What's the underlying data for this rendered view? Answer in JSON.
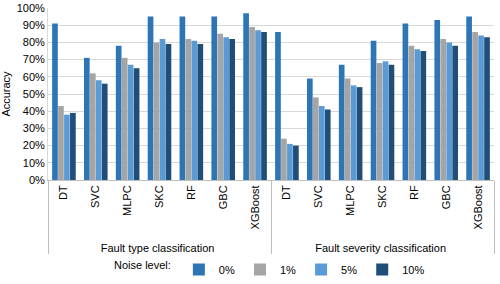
{
  "chart_data": {
    "type": "bar",
    "y_label": "Accuracy",
    "legend_title": "Noise level:",
    "legend": "bottom",
    "grid": true,
    "categories": [
      "DT",
      "SVC",
      "MLPC",
      "SKC",
      "RF",
      "GBC",
      "XGBoost",
      "DT",
      "SVC",
      "MLPC",
      "SKC",
      "RF",
      "GBC",
      "XGBoost"
    ],
    "category_groups": [
      "Fault type classification",
      "Fault type classification",
      "Fault type classification",
      "Fault type classification",
      "Fault type classification",
      "Fault type classification",
      "Fault type classification",
      "Fault severity classification",
      "Fault severity classification",
      "Fault severity classification",
      "Fault severity classification",
      "Fault severity classification",
      "Fault severity classification",
      "Fault severity classification"
    ],
    "series": [
      {
        "name": "0%",
        "color": "#2e75b6",
        "values": [
          91,
          71,
          78,
          95,
          95,
          95,
          97,
          86,
          59,
          67,
          81,
          91,
          93,
          95
        ]
      },
      {
        "name": "1%",
        "color": "#a5a5a5",
        "values": [
          43,
          62,
          71,
          80,
          82,
          85,
          89,
          24,
          48,
          59,
          68,
          78,
          82,
          86
        ]
      },
      {
        "name": "5%",
        "color": "#5b9bd5",
        "values": [
          38,
          58,
          67,
          82,
          81,
          83,
          87,
          21,
          43,
          55,
          69,
          76,
          80,
          84
        ]
      },
      {
        "name": "10%",
        "color": "#1f4e79",
        "values": [
          39,
          56,
          65,
          79,
          79,
          82,
          86,
          20,
          41,
          54,
          67,
          75,
          78,
          83
        ]
      }
    ],
    "ylim": [
      0,
      100
    ],
    "yticks": [
      {
        "value": 0,
        "label": "0%"
      },
      {
        "value": 10,
        "label": "10%"
      },
      {
        "value": 20,
        "label": "20%"
      },
      {
        "value": 30,
        "label": "30%"
      },
      {
        "value": 40,
        "label": "40%"
      },
      {
        "value": 50,
        "label": "50%"
      },
      {
        "value": 60,
        "label": "60%"
      },
      {
        "value": 70,
        "label": "70%"
      },
      {
        "value": 80,
        "label": "80%"
      },
      {
        "value": 90,
        "label": "90%"
      },
      {
        "value": 100,
        "label": "100%"
      }
    ]
  }
}
